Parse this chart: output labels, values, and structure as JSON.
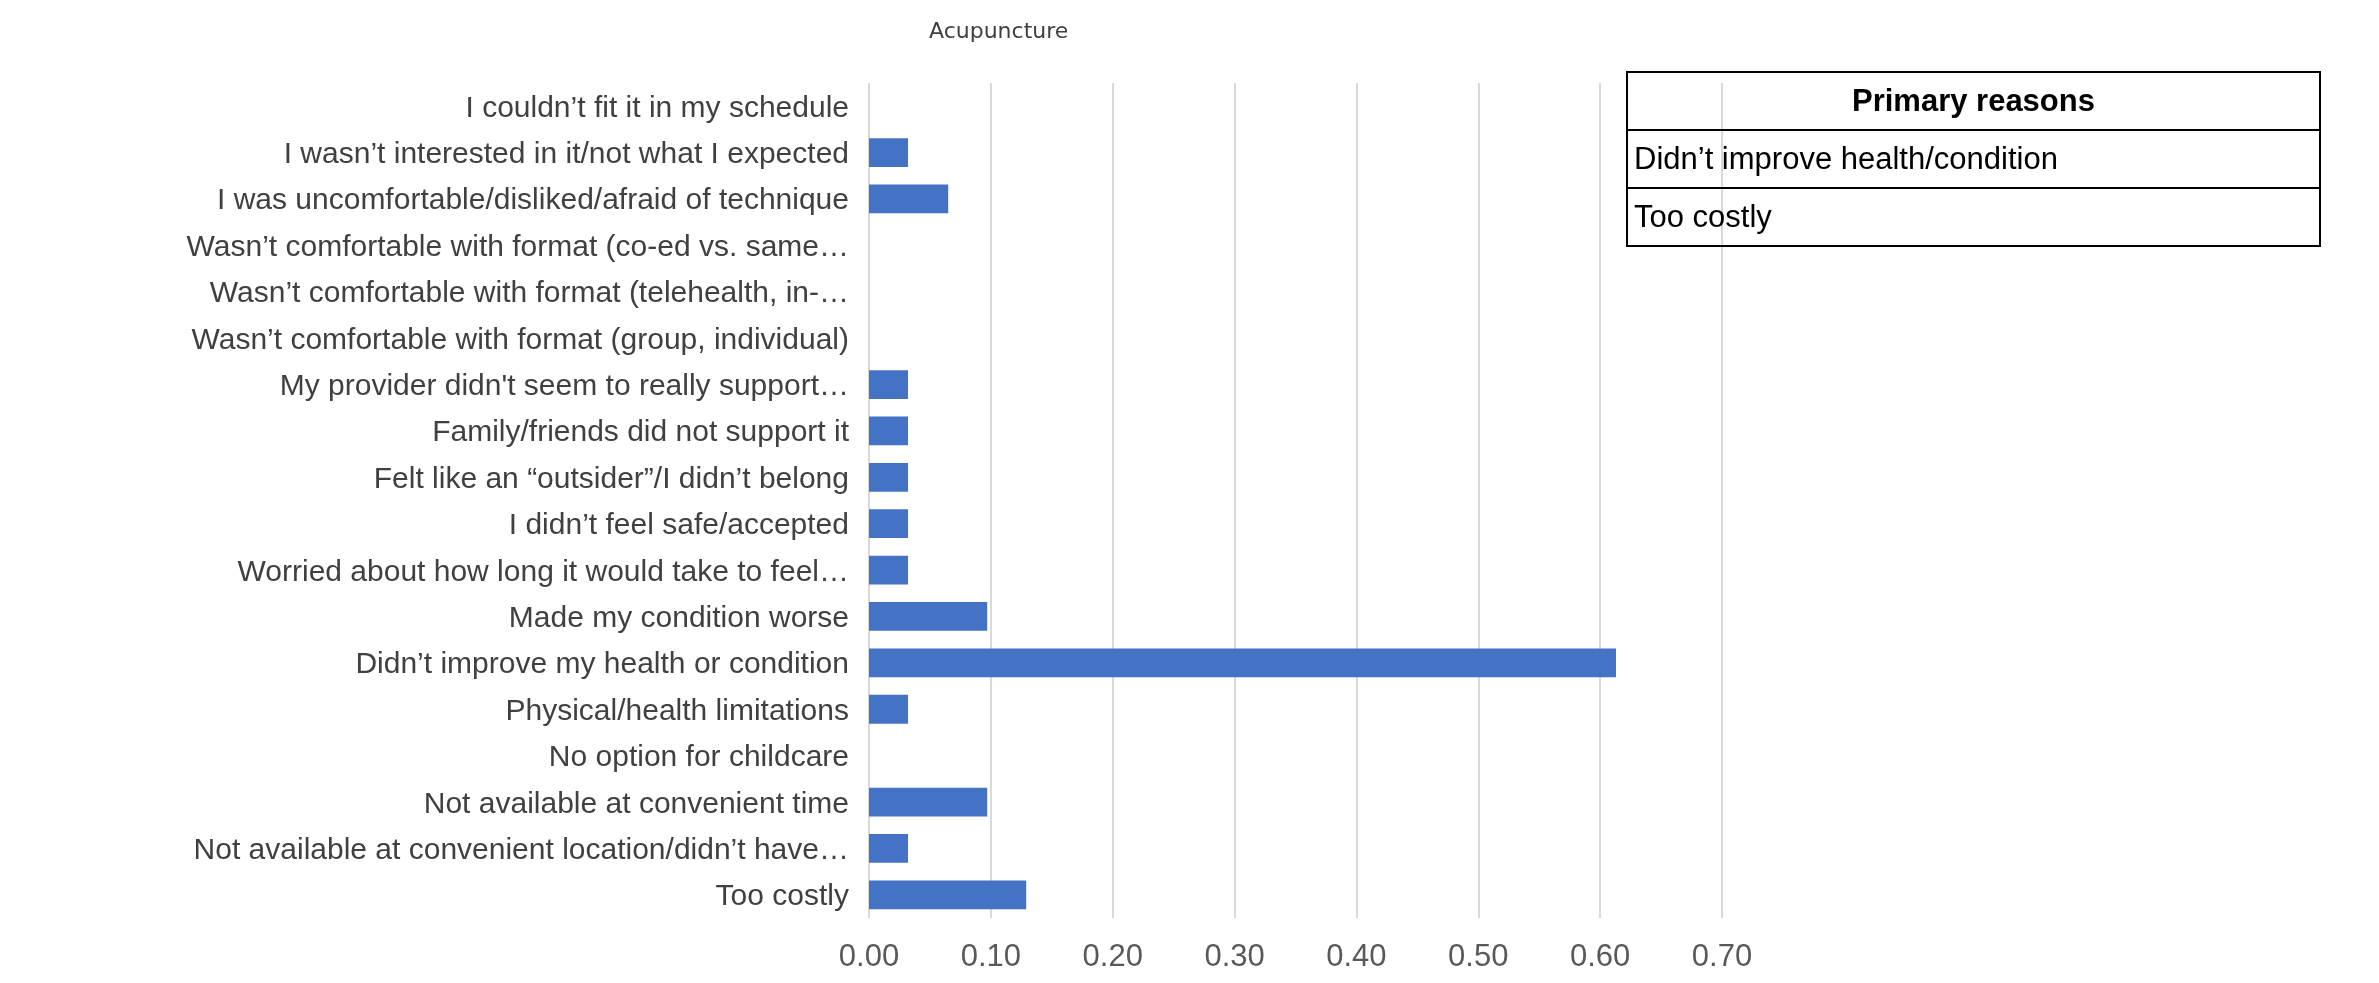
{
  "chart_data": {
    "type": "bar",
    "orientation": "horizontal",
    "title": "Acupuncture",
    "categories": [
      "I couldn’t fit it in my schedule",
      "I wasn’t interested in it/not what I expected",
      "I was uncomfortable/disliked/afraid of technique",
      "Wasn’t comfortable with format (co-ed vs. same…",
      "Wasn’t comfortable with format (telehealth, in-…",
      "Wasn’t comfortable with format (group, individual)",
      "My provider didn't seem to really support…",
      "Family/friends did not support it",
      "Felt like an “outsider”/I didn’t belong",
      "I didn’t feel safe/accepted",
      "Worried about how long it would take to feel…",
      "Made my condition worse",
      "Didn’t improve my health or condition",
      "Physical/health limitations",
      "No option for childcare",
      "Not available at convenient time",
      "Not available at convenient location/didn’t have…",
      "Too costly"
    ],
    "values": [
      0,
      0.032,
      0.065,
      0,
      0,
      0,
      0.032,
      0.032,
      0.032,
      0.032,
      0.032,
      0.097,
      0.613,
      0.032,
      0,
      0.097,
      0.032,
      0.129
    ],
    "color": "#4472c4",
    "xlim": [
      0,
      0.7
    ],
    "xticks": [
      {
        "value": 0,
        "label": "0.00"
      },
      {
        "value": 0.1,
        "label": "0.10"
      },
      {
        "value": 0.2,
        "label": "0.20"
      },
      {
        "value": 0.3,
        "label": "0.30"
      },
      {
        "value": 0.4,
        "label": "0.40"
      },
      {
        "value": 0.5,
        "label": "0.50"
      },
      {
        "value": 0.6,
        "label": "0.60"
      },
      {
        "value": 0.7,
        "label": "0.70"
      }
    ],
    "grid": "x",
    "annotations": [
      "Primary reasons",
      "Didn’t improve health/condition",
      "Too costly"
    ]
  }
}
